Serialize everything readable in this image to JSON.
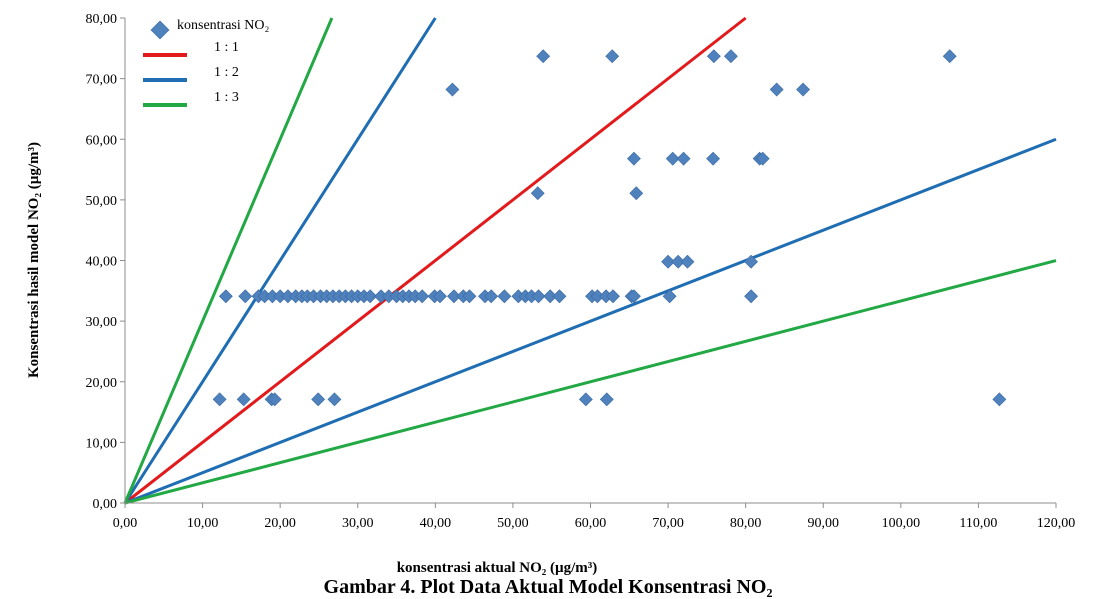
{
  "chart_data": {
    "type": "scatter",
    "xlabel": "konsentrasi aktual NO₂ (µg/m³)",
    "ylabel": "Konsentrasi hasil  model NO₂ (µg/m³)",
    "xlim": [
      0,
      120
    ],
    "ylim": [
      0,
      80
    ],
    "x_ticks": [
      "0,00",
      "10,00",
      "20,00",
      "30,00",
      "40,00",
      "50,00",
      "60,00",
      "70,00",
      "80,00",
      "90,00",
      "100,00",
      "110,00",
      "120,00"
    ],
    "y_ticks": [
      "0,00",
      "10,00",
      "20,00",
      "30,00",
      "40,00",
      "50,00",
      "60,00",
      "70,00",
      "80,00"
    ],
    "grid": false,
    "legend_position": "top-left",
    "series": [
      {
        "name": "konsentrasi NO₂",
        "kind": "scatter",
        "marker": "diamond",
        "color": "#4F81BD",
        "points": [
          [
            13.0,
            34.1
          ],
          [
            15.5,
            34.1
          ],
          [
            17.2,
            34.1
          ],
          [
            18.0,
            34.1
          ],
          [
            19.0,
            34.1
          ],
          [
            20.0,
            34.1
          ],
          [
            21.0,
            34.1
          ],
          [
            22.0,
            34.1
          ],
          [
            22.8,
            34.1
          ],
          [
            23.5,
            34.1
          ],
          [
            24.3,
            34.1
          ],
          [
            25.2,
            34.1
          ],
          [
            26.0,
            34.1
          ],
          [
            26.8,
            34.1
          ],
          [
            27.6,
            34.1
          ],
          [
            28.4,
            34.1
          ],
          [
            29.2,
            34.1
          ],
          [
            30.0,
            34.1
          ],
          [
            30.8,
            34.1
          ],
          [
            31.6,
            34.1
          ],
          [
            33.0,
            34.1
          ],
          [
            34.0,
            34.1
          ],
          [
            35.0,
            34.1
          ],
          [
            35.8,
            34.1
          ],
          [
            36.6,
            34.1
          ],
          [
            37.4,
            34.1
          ],
          [
            38.3,
            34.1
          ],
          [
            39.9,
            34.1
          ],
          [
            40.6,
            34.1
          ],
          [
            42.4,
            34.1
          ],
          [
            43.6,
            34.1
          ],
          [
            44.4,
            34.1
          ],
          [
            46.4,
            34.1
          ],
          [
            47.2,
            34.1
          ],
          [
            48.9,
            34.1
          ],
          [
            50.7,
            34.1
          ],
          [
            51.6,
            34.1
          ],
          [
            52.4,
            34.1
          ],
          [
            53.3,
            34.1
          ],
          [
            54.8,
            34.1
          ],
          [
            56.0,
            34.1
          ],
          [
            60.2,
            34.1
          ],
          [
            60.9,
            34.1
          ],
          [
            62.0,
            34.1
          ],
          [
            62.9,
            34.1
          ],
          [
            65.3,
            34.1
          ],
          [
            65.6,
            34.1
          ],
          [
            70.2,
            34.1
          ],
          [
            80.7,
            34.1
          ],
          [
            12.2,
            17.1
          ],
          [
            15.3,
            17.1
          ],
          [
            18.9,
            17.1
          ],
          [
            19.3,
            17.1
          ],
          [
            24.9,
            17.1
          ],
          [
            27.0,
            17.1
          ],
          [
            59.4,
            17.1
          ],
          [
            62.1,
            17.1
          ],
          [
            112.7,
            17.1
          ],
          [
            70.0,
            39.8
          ],
          [
            71.3,
            39.8
          ],
          [
            72.5,
            39.8
          ],
          [
            80.7,
            39.8
          ],
          [
            53.2,
            51.1
          ],
          [
            65.9,
            51.1
          ],
          [
            65.6,
            56.8
          ],
          [
            70.6,
            56.8
          ],
          [
            72.0,
            56.8
          ],
          [
            75.8,
            56.8
          ],
          [
            81.8,
            56.8
          ],
          [
            82.2,
            56.8
          ],
          [
            42.2,
            68.2
          ],
          [
            84.0,
            68.2
          ],
          [
            87.4,
            68.2
          ],
          [
            53.9,
            73.7
          ],
          [
            62.8,
            73.7
          ],
          [
            75.9,
            73.7
          ],
          [
            78.1,
            73.7
          ],
          [
            106.3,
            73.7
          ]
        ]
      },
      {
        "name": "1 : 1",
        "kind": "line",
        "slope": 1,
        "color": "#E31A1C"
      },
      {
        "name": "1 : 2",
        "kind": "line",
        "slope": 2,
        "color": "#1F6DB3"
      },
      {
        "name": "1 : 2",
        "kind": "line",
        "slope": 0.5,
        "color": "#1F6DB3",
        "in_legend": false
      },
      {
        "name": "1 : 3",
        "kind": "line",
        "slope": 3,
        "color": "#22A844"
      },
      {
        "name": "1 : 3",
        "kind": "line",
        "slope": 0.3333,
        "color": "#22A844",
        "in_legend": false
      }
    ]
  },
  "caption": {
    "text": "Gambar 4. Plot Data Aktual Model Konsentrasi NO₂"
  }
}
